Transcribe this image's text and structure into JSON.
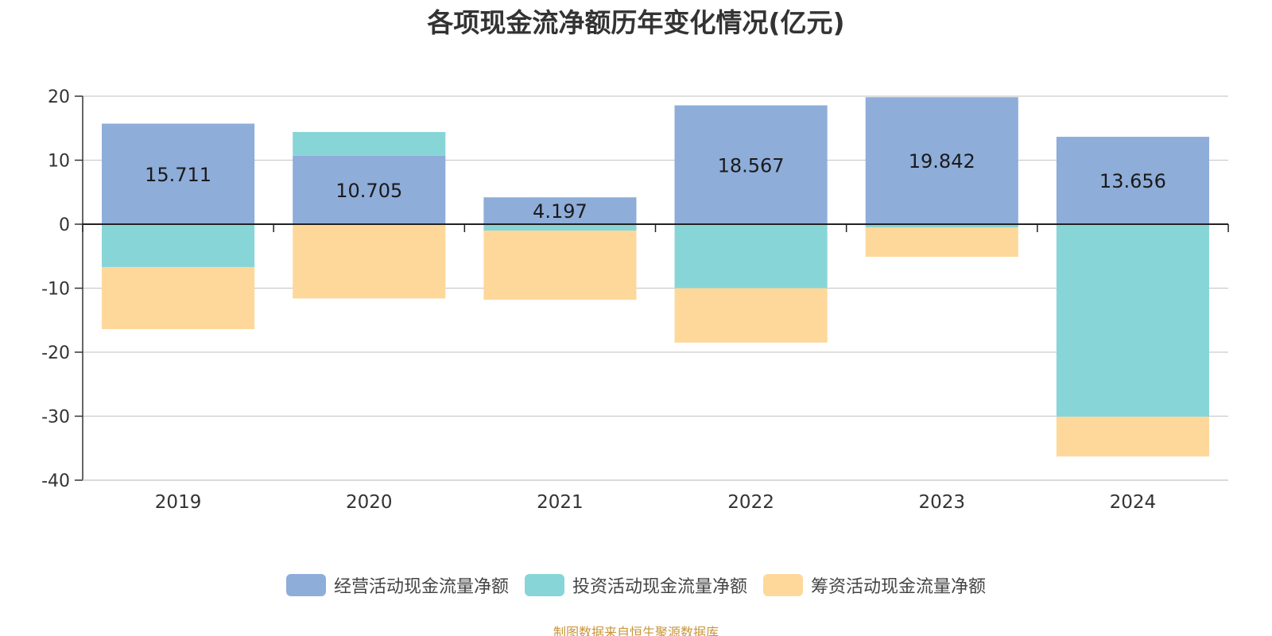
{
  "title": "各项现金流净额历年变化情况(亿元)",
  "source": "制图数据来自恒生聚源数据库",
  "chart_data": {
    "type": "bar",
    "stacked": true,
    "categories": [
      "2019",
      "2020",
      "2021",
      "2022",
      "2023",
      "2024"
    ],
    "ylim": [
      -40,
      20
    ],
    "yticks": [
      20,
      10,
      0,
      -10,
      -20,
      -30,
      -40
    ],
    "grid": true,
    "legend_position": "bottom",
    "series": [
      {
        "name": "经营活动现金流量净额",
        "color": "#8eadd9",
        "values": [
          15.711,
          10.705,
          4.197,
          18.567,
          19.842,
          13.656
        ],
        "labels": [
          "15.711",
          "10.705",
          "4.197",
          "18.567",
          "19.842",
          "13.656"
        ]
      },
      {
        "name": "投资活动现金流量净额",
        "color": "#88d5d8",
        "values": [
          -6.7,
          3.7,
          -1.0,
          -10.0,
          -0.5,
          -30.1
        ]
      },
      {
        "name": "筹资活动现金流量净额",
        "color": "#fed89a",
        "values": [
          -9.7,
          -11.6,
          -10.8,
          -8.5,
          -4.6,
          -6.2
        ]
      }
    ]
  }
}
